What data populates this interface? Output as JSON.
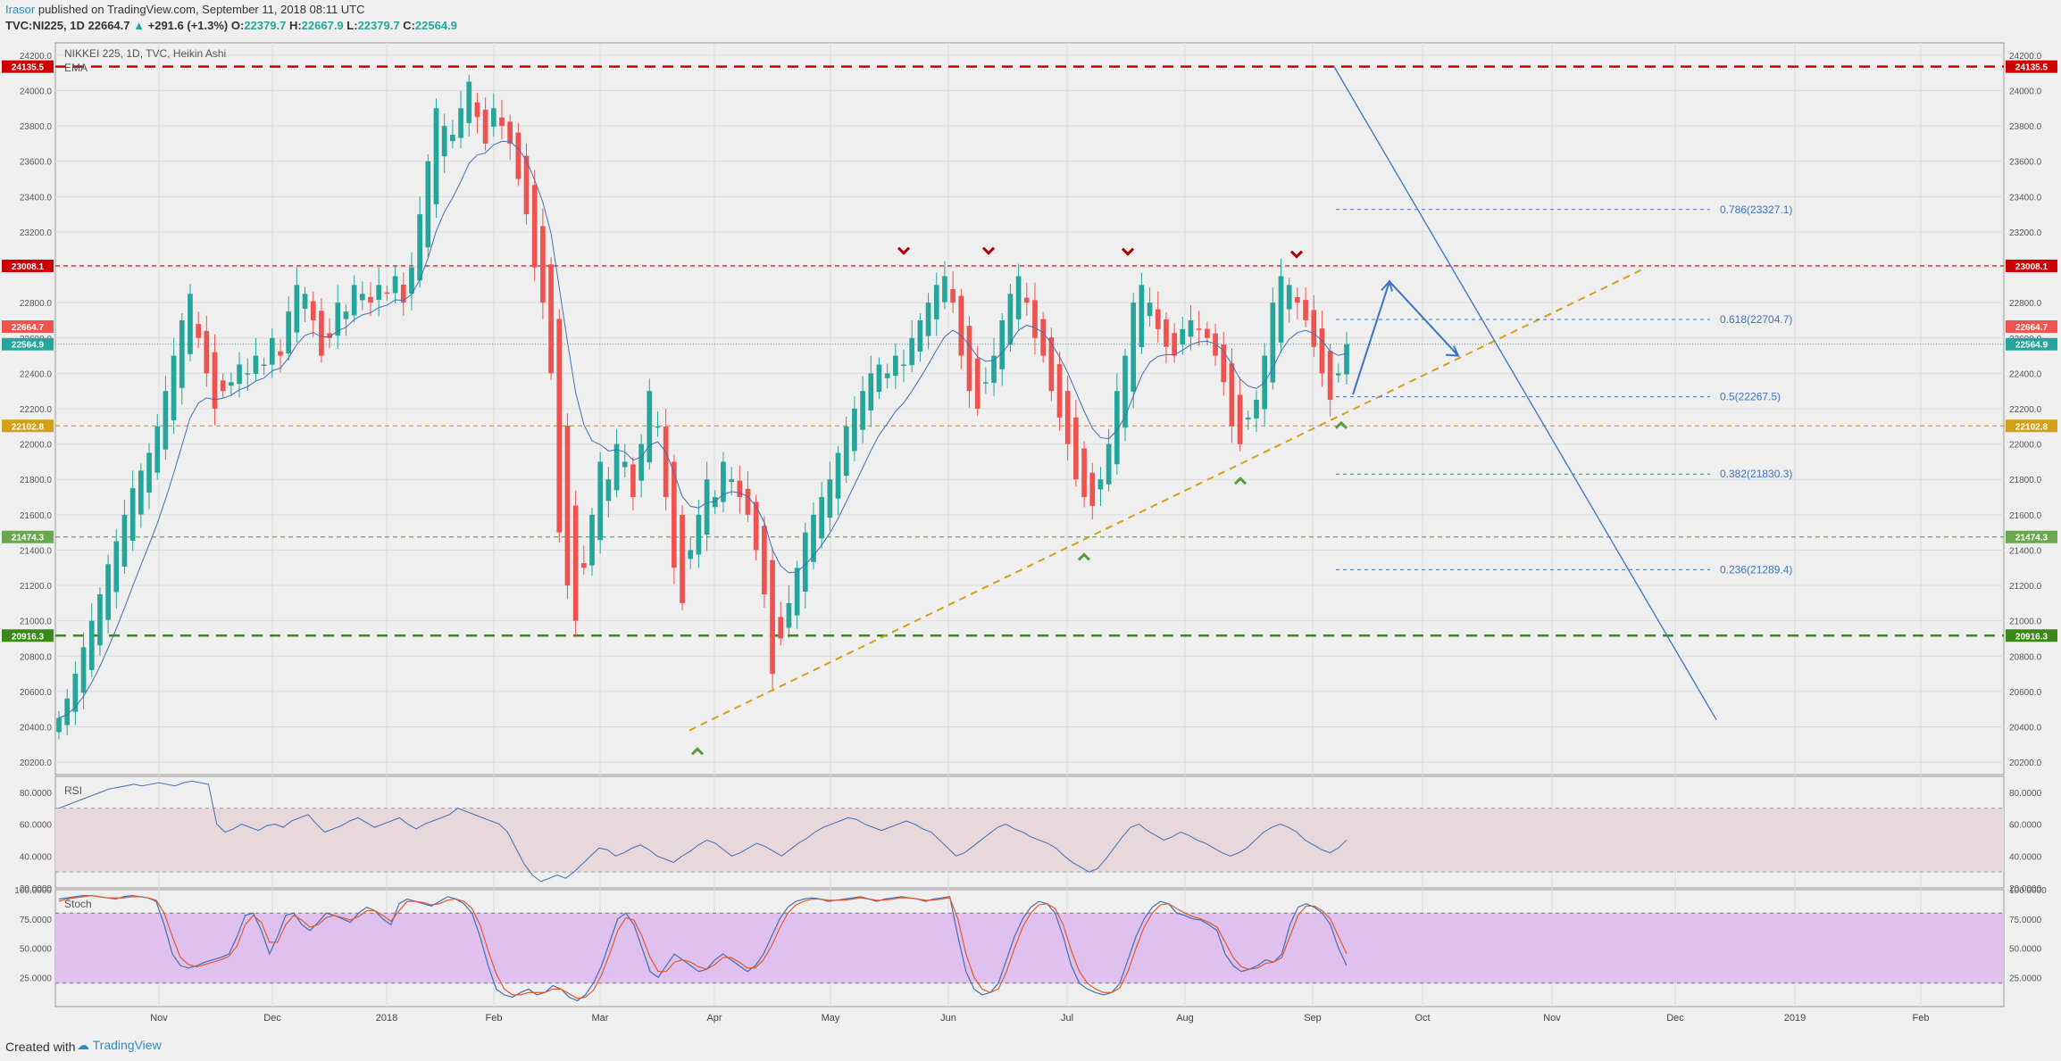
{
  "header": {
    "author": "Irasor",
    "published": " published on TradingView.com, September 11, 2018 08:11 UTC",
    "symbol": "TVC:NI225, 1D",
    "last": "22664.7",
    "change_arrow": "▲",
    "change": "+291.6 (+1.3%)",
    "o_label": "O:",
    "o": "22379.7",
    "h_label": "H:",
    "h": "22667.9",
    "l_label": "L:",
    "l": "22379.7",
    "c_label": "C:",
    "c": "22564.9"
  },
  "legend": {
    "title": "NIKKEI 225, 1D, TVC, Heikin Ashi",
    "ema": "EMA",
    "rsi": "RSI",
    "stoch": "Stoch"
  },
  "footer": {
    "created": "Created with",
    "brand": "TradingView"
  },
  "colors": {
    "bull": "#26a69a",
    "bear": "#ef5350",
    "ema": "#3f6fb5",
    "fib": "#3a74c4",
    "trend": "#d4a017",
    "red_level": "#cc0000",
    "green_level": "#3a8a1a",
    "rsi_band": "#e8d8dc",
    "stoch_band": "#dfc0ee"
  },
  "chart_data": [
    {
      "type": "candlestick",
      "title": "NIKKEI 225, 1D, TVC, Heikin Ashi",
      "x_ticks": [
        "Nov",
        "Dec",
        "2018",
        "Feb",
        "Mar",
        "Apr",
        "May",
        "Jun",
        "Jul",
        "Aug",
        "Sep",
        "Oct",
        "Nov",
        "Dec",
        "2019",
        "Feb"
      ],
      "y_ticks": [
        "20200.0",
        "20400.0",
        "20600.0",
        "20800.0",
        "21000.0",
        "21200.0",
        "21400.0",
        "21600.0",
        "21800.0",
        "22000.0",
        "22200.0",
        "22400.0",
        "22600.0",
        "22800.0",
        "23000.0",
        "23200.0",
        "23400.0",
        "23600.0",
        "23800.0",
        "24000.0",
        "24200.0"
      ],
      "ylim": [
        20130,
        24270
      ],
      "levels": [
        {
          "label": "24135.5",
          "value": 24135.5,
          "color": "#cc0000",
          "style": "long-dash"
        },
        {
          "label": "23008.1",
          "value": 23008.1,
          "color": "#cc0000",
          "style": "dash"
        },
        {
          "label": "22664.7",
          "value": 22664.7,
          "color": "#ef5350",
          "style": "none"
        },
        {
          "label": "22564.9",
          "value": 22564.9,
          "color": "#26a69a",
          "style": "dot"
        },
        {
          "label": "22102.8",
          "value": 22102.8,
          "color": "#d4a017",
          "style": "dash"
        },
        {
          "label": "21474.3",
          "value": 21474.3,
          "color": "#6aa84f",
          "style": "dash"
        },
        {
          "label": "20916.3",
          "value": 20916.3,
          "color": "#3a8a1a",
          "style": "long-dash"
        }
      ],
      "fib_levels": [
        {
          "label": "0.786(23327.1)",
          "value": 23327.1
        },
        {
          "label": "0.618(22704.7)",
          "value": 22704.7
        },
        {
          "label": "0.5(22267.5)",
          "value": 22267.5
        },
        {
          "label": "0.382(21830.3)",
          "value": 21830.3
        },
        {
          "label": "0.236(21289.4)",
          "value": 21289.4
        }
      ],
      "series_close_approx": [
        20450,
        20560,
        20700,
        20850,
        21000,
        21150,
        21320,
        21450,
        21600,
        21750,
        21850,
        21950,
        22100,
        22300,
        22500,
        22700,
        22850,
        22600,
        22400,
        22200,
        22300,
        22350,
        22450,
        22400,
        22500,
        22450,
        22600,
        22500,
        22750,
        22900,
        22850,
        22700,
        22500,
        22600,
        22800,
        22750,
        22900,
        22850,
        22800,
        22900,
        22850,
        22950,
        22800,
        23000,
        23300,
        23600,
        23900,
        23800,
        23750,
        23900,
        24050,
        23850,
        23700,
        23900,
        23800,
        23700,
        23500,
        23300,
        23000,
        22800,
        22400,
        21500,
        21200,
        21000,
        21300,
        21600,
        21900,
        21800,
        22000,
        21900,
        21700,
        22000,
        22300,
        22100,
        21700,
        21300,
        21100,
        21400,
        21600,
        21800,
        21700,
        21900,
        21800,
        21700,
        21600,
        21400,
        21150,
        20700,
        20900,
        21100,
        21300,
        21500,
        21600,
        21700,
        21800,
        21950,
        22100,
        22200,
        22300,
        22400,
        22450,
        22400,
        22500,
        22450,
        22600,
        22700,
        22800,
        22900,
        22950,
        22800,
        22500,
        22300,
        22200,
        22350,
        22500,
        22700,
        22850,
        22950,
        22800,
        22600,
        22500,
        22300,
        22150,
        22000,
        21800,
        21700,
        21650,
        21800,
        22000,
        22300,
        22500,
        22800,
        22900,
        22800,
        22650,
        22550,
        22500,
        22650,
        22700,
        22650,
        22600,
        22500,
        22350,
        22100,
        22000,
        22150,
        22250,
        22500,
        22800,
        22950,
        22900,
        22800,
        22700,
        22550,
        22400,
        22250,
        22400,
        22565
      ]
    },
    {
      "type": "line",
      "title": "RSI",
      "y_ticks": [
        "20.0000",
        "40.0000",
        "60.0000",
        "80.0000"
      ],
      "ylim": [
        20,
        90
      ],
      "band": [
        30,
        70
      ],
      "values": [
        70,
        72,
        74,
        76,
        78,
        80,
        82,
        83,
        84,
        85,
        84,
        85,
        86,
        85,
        84,
        86,
        87,
        86,
        85,
        60,
        55,
        57,
        60,
        58,
        56,
        59,
        60,
        58,
        62,
        64,
        66,
        60,
        55,
        57,
        59,
        62,
        64,
        61,
        58,
        60,
        62,
        64,
        60,
        57,
        60,
        62,
        64,
        66,
        70,
        68,
        66,
        64,
        62,
        60,
        55,
        45,
        35,
        28,
        24,
        26,
        28,
        26,
        30,
        35,
        40,
        45,
        44,
        40,
        42,
        45,
        47,
        44,
        40,
        38,
        36,
        40,
        43,
        47,
        50,
        48,
        44,
        40,
        42,
        45,
        48,
        46,
        43,
        40,
        44,
        48,
        51,
        55,
        58,
        60,
        62,
        64,
        63,
        60,
        58,
        56,
        58,
        60,
        62,
        60,
        57,
        55,
        50,
        45,
        40,
        42,
        46,
        50,
        54,
        58,
        60,
        57,
        55,
        52,
        50,
        48,
        45,
        40,
        36,
        33,
        30,
        32,
        38,
        45,
        52,
        58,
        60,
        56,
        53,
        50,
        52,
        55,
        53,
        50,
        48,
        45,
        42,
        40,
        42,
        45,
        50,
        55,
        58,
        60,
        58,
        55,
        50,
        47,
        44,
        42,
        45,
        50
      ]
    },
    {
      "type": "line",
      "title": "Stoch",
      "y_ticks": [
        "25.0000",
        "50.0000",
        "75.0000",
        "100.0000"
      ],
      "ylim": [
        0,
        100
      ],
      "band": [
        20,
        80
      ],
      "series": [
        {
          "name": "",
          "color": "#3f6fb5",
          "values": [
            92,
            93,
            94,
            95,
            95,
            94,
            93,
            92,
            94,
            95,
            94,
            93,
            90,
            70,
            45,
            35,
            33,
            35,
            38,
            40,
            42,
            45,
            60,
            78,
            80,
            65,
            45,
            60,
            78,
            80,
            70,
            65,
            72,
            80,
            78,
            75,
            72,
            80,
            85,
            82,
            75,
            70,
            88,
            92,
            90,
            88,
            86,
            90,
            94,
            92,
            88,
            80,
            60,
            35,
            15,
            10,
            8,
            12,
            15,
            10,
            12,
            18,
            15,
            8,
            5,
            10,
            20,
            35,
            55,
            75,
            80,
            70,
            50,
            30,
            25,
            35,
            45,
            40,
            35,
            30,
            32,
            40,
            45,
            40,
            35,
            30,
            35,
            45,
            60,
            75,
            85,
            90,
            92,
            93,
            92,
            90,
            91,
            92,
            93,
            94,
            92,
            90,
            92,
            93,
            94,
            93,
            92,
            90,
            92,
            93,
            94,
            60,
            30,
            15,
            10,
            12,
            20,
            40,
            60,
            75,
            85,
            90,
            88,
            80,
            60,
            35,
            20,
            15,
            12,
            10,
            12,
            20,
            40,
            60,
            75,
            85,
            90,
            88,
            80,
            78,
            75,
            74,
            70,
            65,
            45,
            35,
            30,
            32,
            35,
            40,
            38,
            45,
            70,
            85,
            88,
            85,
            80,
            70,
            50,
            35
          ]
        },
        {
          "name": "",
          "color": "#e05a2a",
          "values": [
            90,
            92,
            93,
            94,
            95,
            94,
            93,
            93,
            93,
            94,
            94,
            93,
            91,
            80,
            60,
            42,
            36,
            34,
            36,
            38,
            40,
            43,
            52,
            70,
            78,
            72,
            55,
            55,
            70,
            78,
            74,
            68,
            70,
            76,
            78,
            76,
            74,
            77,
            82,
            82,
            78,
            73,
            82,
            90,
            90,
            89,
            87,
            88,
            91,
            92,
            90,
            84,
            70,
            48,
            28,
            15,
            10,
            10,
            12,
            12,
            12,
            15,
            15,
            11,
            7,
            8,
            14,
            27,
            45,
            65,
            76,
            74,
            60,
            42,
            30,
            30,
            38,
            40,
            38,
            34,
            32,
            36,
            42,
            42,
            38,
            33,
            33,
            40,
            52,
            67,
            80,
            87,
            90,
            92,
            92,
            91,
            91,
            91,
            92,
            93,
            92,
            91,
            91,
            92,
            93,
            93,
            92,
            91,
            91,
            92,
            93,
            75,
            45,
            25,
            15,
            12,
            15,
            30,
            50,
            68,
            80,
            87,
            88,
            84,
            70,
            48,
            30,
            20,
            15,
            12,
            12,
            16,
            30,
            50,
            68,
            80,
            87,
            88,
            84,
            80,
            77,
            75,
            72,
            68,
            55,
            42,
            34,
            32,
            33,
            37,
            38,
            42,
            60,
            78,
            86,
            86,
            82,
            75,
            60,
            45
          ]
        }
      ]
    }
  ]
}
